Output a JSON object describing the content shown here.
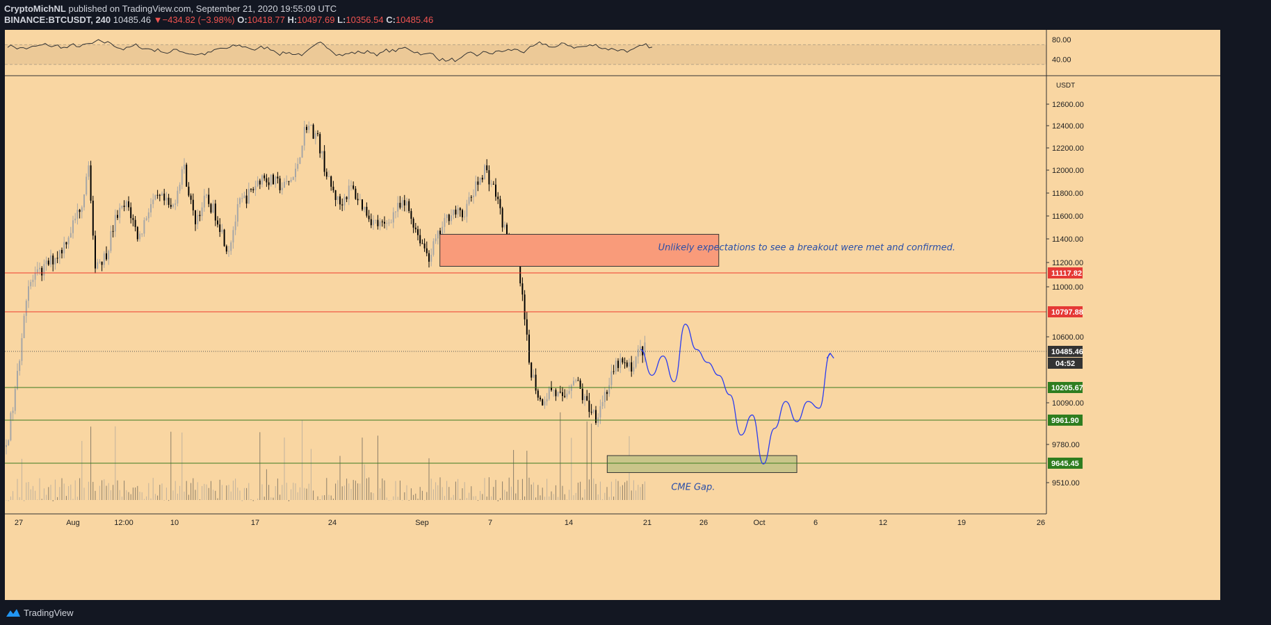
{
  "header": {
    "author": "CryptoMichNL",
    "published_text": "published on TradingView.com, September 21, 2020 19:55:09 UTC",
    "symbol": "BINANCE:BTCUSDT, 240",
    "last": "10485.46",
    "change": "−434.82 (−3.98%)",
    "o_label": "O:",
    "o": "10418.77",
    "h_label": "H:",
    "h": "10497.69",
    "l_label": "L:",
    "l": "10356.54",
    "c_label": "C:",
    "c": "10485.46"
  },
  "footer": {
    "brand": "TradingView"
  },
  "colors": {
    "background": "#f9d6a2",
    "up_candle": "#a6a6a6",
    "down_candle": "#000000",
    "red_level": "#ef3b2c",
    "green_level": "#3c7a1e",
    "projection": "#2a3cf0",
    "resistance_zone": "#f99b7a",
    "cme_gap_zone": "#c9c58a",
    "annotation_text": "#2a4fa8"
  },
  "chart_data": {
    "type": "candlestick",
    "symbol": "BINANCE:BTCUSDT",
    "interval": "240",
    "currency": "USDT",
    "x_tick_labels": [
      "27",
      "Aug",
      "12:00",
      "10",
      "17",
      "24",
      "Sep",
      "7",
      "14",
      "21",
      "26",
      "Oct",
      "6",
      "12",
      "19",
      "26"
    ],
    "y_tick_labels": [
      "12600.00",
      "12400.00",
      "12200.00",
      "12000.00",
      "11800.00",
      "11600.00",
      "11400.00",
      "11200.00",
      "11000.00",
      "10600.00",
      "10090.00",
      "9780.00",
      "9510.00"
    ],
    "ylim": [
      9430,
      12780
    ],
    "horizontal_levels": [
      {
        "label": "11117.82",
        "value": 11117.82,
        "kind": "resistance"
      },
      {
        "label": "10797.88",
        "value": 10797.88,
        "kind": "resistance"
      },
      {
        "label": "10485.46",
        "value": 10485.46,
        "kind": "last-price"
      },
      {
        "label": "10205.67",
        "value": 10205.67,
        "kind": "support"
      },
      {
        "label": "9961.90",
        "value": 9961.9,
        "kind": "support"
      },
      {
        "label": "9645.45",
        "value": 9645.45,
        "kind": "support"
      }
    ],
    "countdown": "04:52",
    "zones": [
      {
        "kind": "resistance",
        "date_from": "2020-09-03",
        "date_to": "2020-09-28",
        "price_from": 11170,
        "price_to": 11440
      },
      {
        "kind": "cme-gap",
        "date_from": "2020-09-18",
        "date_to": "2020-10-05",
        "price_from": 9580,
        "price_to": 9700
      }
    ],
    "annotations": [
      {
        "text": "Unlikely expectations to see a breakout were met and confirmed."
      },
      {
        "text": "CME Gap."
      }
    ],
    "price_path": [
      [
        "2020-07-26",
        9700
      ],
      [
        "2020-07-27",
        10200
      ],
      [
        "2020-07-28",
        11000
      ],
      [
        "2020-07-29",
        11100
      ],
      [
        "2020-07-30",
        11200
      ],
      [
        "2020-07-31",
        11300
      ],
      [
        "2020-08-01",
        11500
      ],
      [
        "2020-08-02",
        11750
      ],
      [
        "2020-08-02T12:00",
        12100
      ],
      [
        "2020-08-03",
        11200
      ],
      [
        "2020-08-04",
        11250
      ],
      [
        "2020-08-05",
        11600
      ],
      [
        "2020-08-06",
        11700
      ],
      [
        "2020-08-07",
        11400
      ],
      [
        "2020-08-08",
        11700
      ],
      [
        "2020-08-09",
        11750
      ],
      [
        "2020-08-10",
        11650
      ],
      [
        "2020-08-11",
        12050
      ],
      [
        "2020-08-12",
        11550
      ],
      [
        "2020-08-13",
        11750
      ],
      [
        "2020-08-14",
        11600
      ],
      [
        "2020-08-15",
        11300
      ],
      [
        "2020-08-16",
        11700
      ],
      [
        "2020-08-17",
        11800
      ],
      [
        "2020-08-18",
        11950
      ],
      [
        "2020-08-19",
        11900
      ],
      [
        "2020-08-20",
        11850
      ],
      [
        "2020-08-21",
        11950
      ],
      [
        "2020-08-22",
        12420
      ],
      [
        "2020-08-23",
        12300
      ],
      [
        "2020-08-24",
        11900
      ],
      [
        "2020-08-25",
        11700
      ],
      [
        "2020-08-26",
        11850
      ],
      [
        "2020-08-27",
        11700
      ],
      [
        "2020-08-28",
        11550
      ],
      [
        "2020-08-29",
        11500
      ],
      [
        "2020-08-30",
        11650
      ],
      [
        "2020-08-31",
        11700
      ],
      [
        "2020-09-01",
        11450
      ],
      [
        "2020-09-02",
        11250
      ],
      [
        "2020-09-03",
        11450
      ],
      [
        "2020-09-04",
        11650
      ],
      [
        "2020-09-05",
        11600
      ],
      [
        "2020-09-06",
        11800
      ],
      [
        "2020-09-07",
        12020
      ],
      [
        "2020-09-08",
        11800
      ],
      [
        "2020-09-09",
        11400
      ],
      [
        "2020-09-10",
        11200
      ],
      [
        "2020-09-11",
        10400
      ],
      [
        "2020-09-12",
        10100
      ],
      [
        "2020-09-13",
        10200
      ],
      [
        "2020-09-14",
        10100
      ],
      [
        "2020-09-15",
        10300
      ],
      [
        "2020-09-16",
        10100
      ],
      [
        "2020-09-17",
        10000
      ],
      [
        "2020-09-18",
        10200
      ],
      [
        "2020-09-19",
        10400
      ],
      [
        "2020-09-20",
        10350
      ],
      [
        "2020-09-21",
        10500
      ]
    ],
    "projection_path": [
      [
        "2020-09-21",
        10500
      ],
      [
        "2020-09-22",
        10300
      ],
      [
        "2020-09-23",
        10450
      ],
      [
        "2020-09-24",
        10250
      ],
      [
        "2020-09-25",
        10700
      ],
      [
        "2020-09-26",
        10500
      ],
      [
        "2020-09-27",
        10400
      ],
      [
        "2020-09-28",
        10300
      ],
      [
        "2020-09-29",
        10150
      ],
      [
        "2020-09-30",
        9850
      ],
      [
        "2020-10-01",
        10000
      ],
      [
        "2020-10-02",
        9640
      ],
      [
        "2020-10-03",
        9900
      ],
      [
        "2020-10-04",
        10100
      ],
      [
        "2020-10-05",
        9950
      ],
      [
        "2020-10-06",
        10100
      ],
      [
        "2020-10-07",
        10050
      ],
      [
        "2020-10-08",
        10470
      ]
    ],
    "rsi": {
      "y_tick_labels": [
        "80.00",
        "40.00"
      ],
      "band": [
        30,
        70
      ]
    }
  }
}
